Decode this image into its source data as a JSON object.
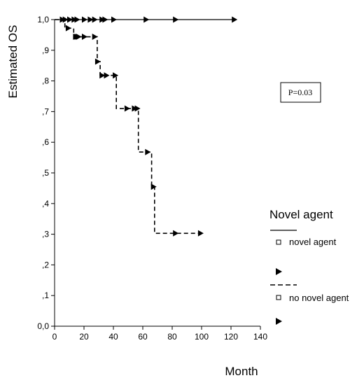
{
  "chart_data": {
    "type": "line",
    "xlabel": "Month",
    "ylabel": "Estimated OS",
    "xlim": [
      0,
      140
    ],
    "ylim": [
      0,
      1
    ],
    "xticks": [
      0,
      20,
      40,
      60,
      80,
      100,
      120,
      140
    ],
    "xtick_labels": [
      "0",
      "20",
      "40",
      "60",
      "80",
      "100",
      "120",
      "140"
    ],
    "yticks": [
      0,
      0.1,
      0.2,
      0.3,
      0.4,
      0.5,
      0.6,
      0.7,
      0.8,
      0.9,
      1.0
    ],
    "ytick_labels": [
      "0,0",
      ",1",
      ",2",
      ",3",
      ",4",
      ",5",
      ",6",
      ",7",
      ",8",
      ",9",
      "1,0"
    ],
    "grid": false,
    "legend_position": "right",
    "legend_title": "Novel agent",
    "annotation": "P=0.03",
    "series": [
      {
        "name": "novel agent",
        "style": "solid",
        "color": "#000000",
        "steps": [
          [
            0,
            1.0
          ],
          [
            122,
            1.0
          ]
        ],
        "censored": [
          [
            5,
            1.0
          ],
          [
            7,
            1.0
          ],
          [
            10,
            1.0
          ],
          [
            13,
            1.0
          ],
          [
            15,
            1.0
          ],
          [
            20,
            1.0
          ],
          [
            24,
            1.0
          ],
          [
            27,
            1.0
          ],
          [
            32,
            1.0
          ],
          [
            34,
            1.0
          ],
          [
            40,
            1.0
          ],
          [
            62,
            1.0
          ],
          [
            82,
            1.0
          ],
          [
            122,
            1.0
          ]
        ]
      },
      {
        "name": "no novel agent",
        "style": "dashed",
        "color": "#000000",
        "steps": [
          [
            0,
            1.0
          ],
          [
            7,
            1.0
          ],
          [
            7,
            0.972
          ],
          [
            13,
            0.972
          ],
          [
            13,
            0.944
          ],
          [
            29,
            0.944
          ],
          [
            29,
            0.863
          ],
          [
            31,
            0.863
          ],
          [
            31,
            0.818
          ],
          [
            42,
            0.818
          ],
          [
            42,
            0.71
          ],
          [
            57,
            0.71
          ],
          [
            57,
            0.568
          ],
          [
            66,
            0.568
          ],
          [
            66,
            0.455
          ],
          [
            68,
            0.455
          ],
          [
            68,
            0.303
          ],
          [
            99,
            0.303
          ]
        ],
        "censored": [
          [
            9,
            0.972
          ],
          [
            14,
            0.944
          ],
          [
            15,
            0.944
          ],
          [
            16,
            0.944
          ],
          [
            20,
            0.944
          ],
          [
            27,
            0.944
          ],
          [
            29,
            0.863
          ],
          [
            32,
            0.818
          ],
          [
            35,
            0.818
          ],
          [
            41,
            0.818
          ],
          [
            49,
            0.71
          ],
          [
            54,
            0.71
          ],
          [
            56,
            0.71
          ],
          [
            63,
            0.568
          ],
          [
            67,
            0.455
          ],
          [
            82,
            0.303
          ],
          [
            99,
            0.303
          ]
        ]
      }
    ]
  },
  "legend": {
    "title": "Novel agent",
    "items": [
      {
        "label": "novel agent",
        "line": "solid"
      },
      {
        "label": "no novel agent",
        "line": "dashed"
      }
    ]
  },
  "pvalue": {
    "label": "P=0.03"
  }
}
